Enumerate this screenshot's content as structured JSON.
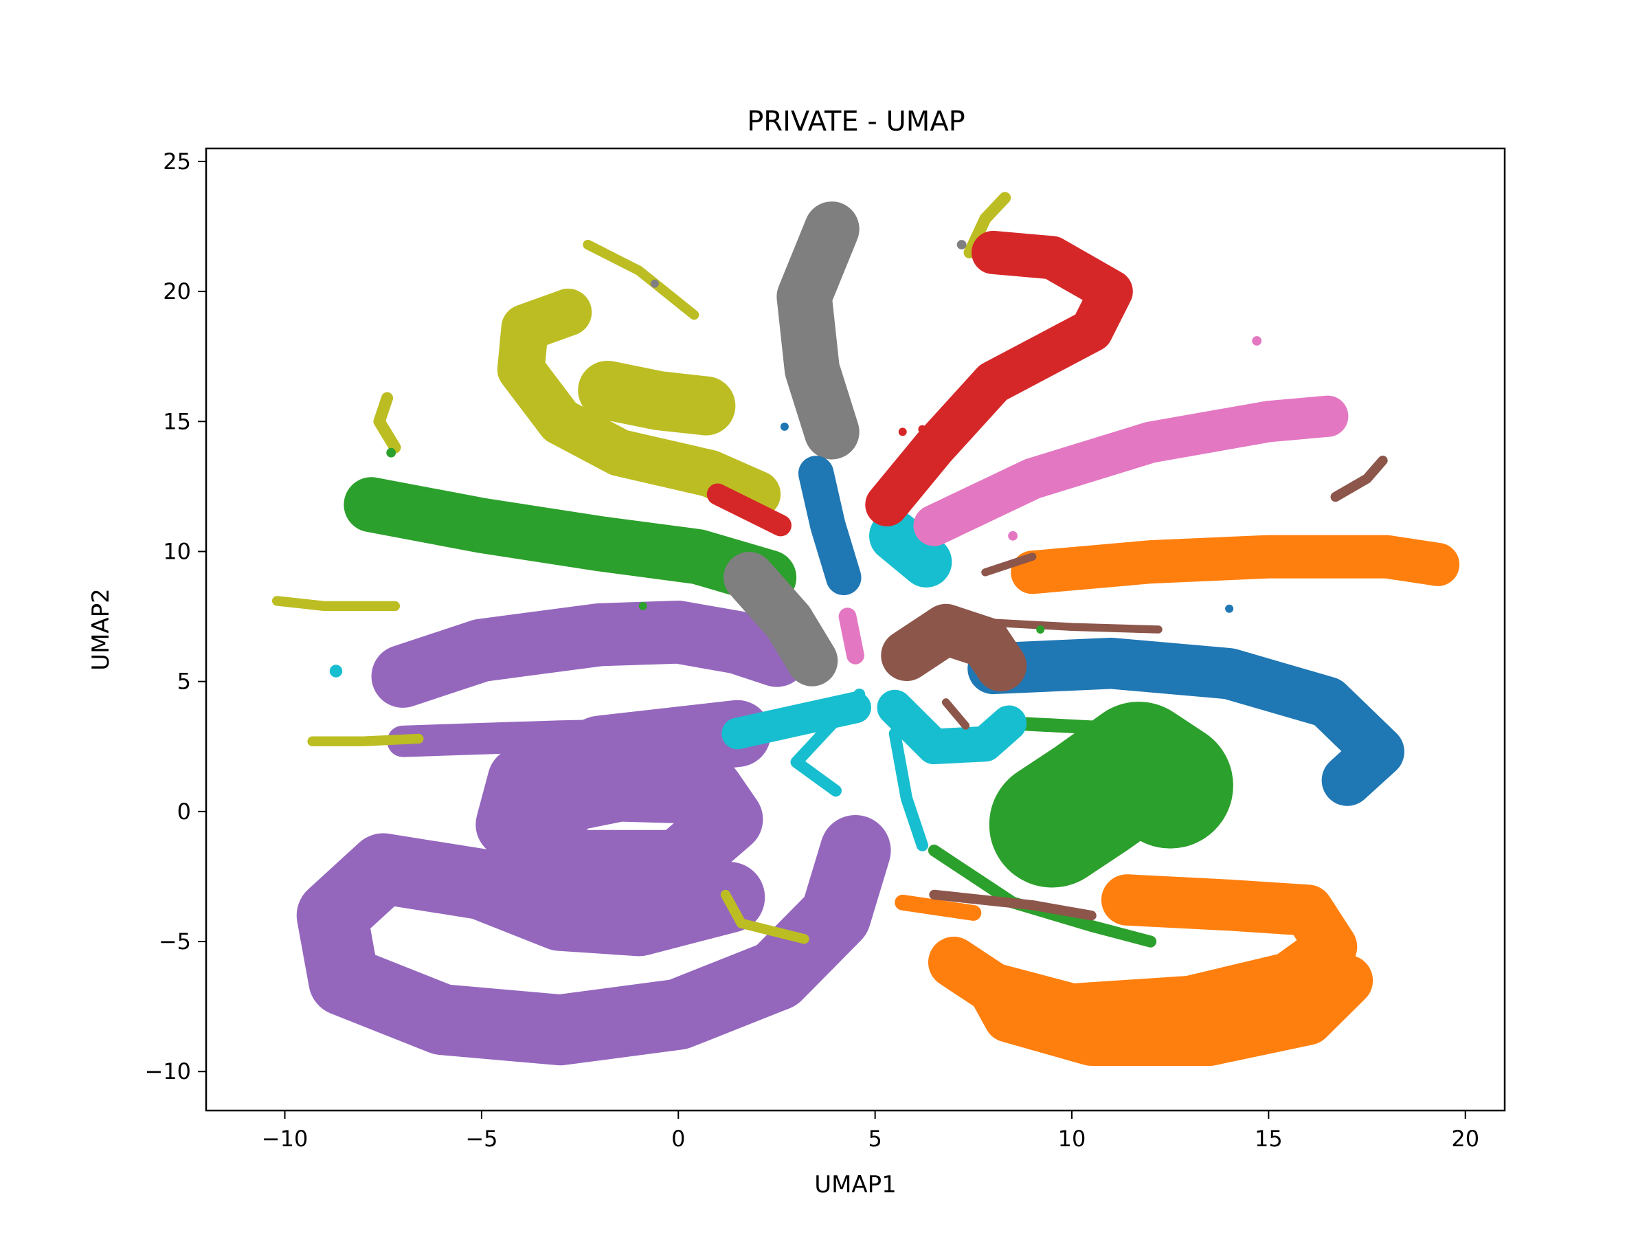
{
  "chart_data": {
    "type": "scatter",
    "title": "PRIVATE - UMAP",
    "xlabel": "UMAP1",
    "ylabel": "UMAP2",
    "xlim": [
      -12,
      21
    ],
    "ylim": [
      -11.5,
      25.5
    ],
    "xticks": [
      -10,
      -5,
      0,
      5,
      10,
      15,
      20
    ],
    "yticks": [
      -10,
      -5,
      0,
      5,
      10,
      15,
      20,
      25
    ],
    "xtick_labels": [
      "−10",
      "−5",
      "0",
      "5",
      "10",
      "15",
      "20"
    ],
    "ytick_labels": [
      "−10",
      "−5",
      "0",
      "5",
      "10",
      "15",
      "20",
      "25"
    ],
    "grid": false,
    "colors": [
      "#1f77b4",
      "#ff7f0e",
      "#2ca02c",
      "#d62728",
      "#9467bd",
      "#8c564b",
      "#e377c2",
      "#7f7f7f",
      "#bcbd22",
      "#17becf"
    ],
    "clusters": [
      {
        "color": "#9467bd",
        "width": 1.6,
        "points": [
          [
            -7,
            5.2
          ],
          [
            -5,
            6.2
          ],
          [
            -2,
            6.8
          ],
          [
            0,
            6.9
          ],
          [
            1.5,
            6.5
          ],
          [
            2.5,
            6
          ]
        ]
      },
      {
        "color": "#9467bd",
        "width": 0.8,
        "points": [
          [
            -7,
            2.7
          ],
          [
            -3,
            2.9
          ],
          [
            0,
            3
          ],
          [
            1.5,
            3
          ]
        ]
      },
      {
        "color": "#9467bd",
        "width": 1.7,
        "points": [
          [
            1.5,
            3
          ],
          [
            -2,
            2.4
          ],
          [
            -4,
            1.2
          ],
          [
            -4.3,
            -0.5
          ],
          [
            -2.5,
            -2
          ],
          [
            0,
            -2
          ],
          [
            1.3,
            -0.3
          ],
          [
            0.8,
            0.8
          ],
          [
            -1.5,
            0.9
          ],
          [
            -2.8,
            0.5
          ]
        ]
      },
      {
        "color": "#9467bd",
        "width": 1.8,
        "points": [
          [
            4.5,
            -1.5
          ],
          [
            4,
            -4
          ],
          [
            2.5,
            -6.3
          ],
          [
            0,
            -7.8
          ],
          [
            -3,
            -8.4
          ],
          [
            -6,
            -8
          ],
          [
            -8.5,
            -6.5
          ],
          [
            -8.8,
            -4
          ],
          [
            -7.5,
            -2.2
          ],
          [
            -5,
            -2.8
          ],
          [
            -3,
            -4
          ],
          [
            -1,
            -4.2
          ],
          [
            1.3,
            -3.3
          ]
        ]
      },
      {
        "color": "#bcbd22",
        "width": 1.2,
        "points": [
          [
            -2.8,
            19.2
          ],
          [
            -3.9,
            18.6
          ],
          [
            -4,
            17
          ],
          [
            -3,
            15
          ],
          [
            -1.5,
            13.8
          ],
          [
            0.8,
            13
          ],
          [
            2,
            12.2
          ]
        ]
      },
      {
        "color": "#bcbd22",
        "width": 1.5,
        "points": [
          [
            -1.8,
            16.2
          ],
          [
            -0.5,
            15.8
          ],
          [
            0.7,
            15.6
          ]
        ]
      },
      {
        "color": "#bcbd22",
        "width": 0.25,
        "points": [
          [
            -2.3,
            21.8
          ],
          [
            -1,
            20.8
          ],
          [
            0.4,
            19.1
          ]
        ]
      },
      {
        "color": "#bcbd22",
        "width": 0.3,
        "points": [
          [
            -7.4,
            15.9
          ],
          [
            -7.6,
            15
          ],
          [
            -7.2,
            14
          ]
        ]
      },
      {
        "color": "#bcbd22",
        "width": 0.25,
        "points": [
          [
            -10.2,
            8.1
          ],
          [
            -9,
            7.9
          ],
          [
            -7.2,
            7.9
          ]
        ]
      },
      {
        "color": "#bcbd22",
        "width": 0.25,
        "points": [
          [
            -9.3,
            2.7
          ],
          [
            -8,
            2.7
          ],
          [
            -6.6,
            2.8
          ]
        ]
      },
      {
        "color": "#bcbd22",
        "width": 0.25,
        "points": [
          [
            1.2,
            -3.2
          ],
          [
            1.6,
            -4.3
          ],
          [
            3.2,
            -4.9
          ]
        ]
      },
      {
        "color": "#bcbd22",
        "width": 0.3,
        "points": [
          [
            7.4,
            21.5
          ],
          [
            7.8,
            22.8
          ],
          [
            8.3,
            23.6
          ]
        ]
      },
      {
        "color": "#2ca02c",
        "width": 1.4,
        "points": [
          [
            -7.8,
            11.8
          ],
          [
            -5,
            11
          ],
          [
            -2,
            10.3
          ],
          [
            0.5,
            9.8
          ],
          [
            2.3,
            9
          ]
        ]
      },
      {
        "color": "#2ca02c",
        "width": 3.2,
        "points": [
          [
            9.5,
            -0.5
          ],
          [
            10.5,
            0.5
          ],
          [
            11.7,
            1.8
          ],
          [
            12.5,
            1
          ]
        ]
      },
      {
        "color": "#2ca02c",
        "width": 0.35,
        "points": [
          [
            8.4,
            3.4
          ],
          [
            11,
            3.2
          ],
          [
            13.2,
            2.2
          ]
        ]
      },
      {
        "color": "#2ca02c",
        "width": 0.3,
        "points": [
          [
            6.5,
            -1.5
          ],
          [
            8.5,
            -3.5
          ],
          [
            10.5,
            -4.4
          ],
          [
            12,
            -5
          ]
        ]
      },
      {
        "color": "#7f7f7f",
        "width": 1.4,
        "points": [
          [
            3.9,
            22.4
          ],
          [
            3.2,
            19.8
          ],
          [
            3.4,
            17
          ],
          [
            3.9,
            14.6
          ]
        ]
      },
      {
        "color": "#7f7f7f",
        "width": 1.3,
        "points": [
          [
            1.8,
            9
          ],
          [
            2.8,
            7.3
          ],
          [
            3.4,
            5.8
          ]
        ]
      },
      {
        "color": "#1f77b4",
        "width": 0.9,
        "points": [
          [
            3.5,
            13
          ],
          [
            3.8,
            11
          ],
          [
            4.2,
            9
          ]
        ]
      },
      {
        "color": "#1f77b4",
        "width": 1.3,
        "points": [
          [
            8,
            5.5
          ],
          [
            11,
            5.7
          ],
          [
            14,
            5.3
          ],
          [
            16.5,
            4.2
          ],
          [
            17.8,
            2.3
          ],
          [
            17,
            1.2
          ]
        ]
      },
      {
        "color": "#17becf",
        "width": 1.3,
        "points": [
          [
            5.5,
            10.6
          ],
          [
            6.3,
            9.6
          ]
        ]
      },
      {
        "color": "#17becf",
        "width": 0.8,
        "points": [
          [
            1.5,
            3
          ],
          [
            3,
            3.5
          ],
          [
            4.5,
            4
          ]
        ]
      },
      {
        "color": "#17becf",
        "width": 0.3,
        "points": [
          [
            4.6,
            4.5
          ],
          [
            3,
            1.9
          ],
          [
            4,
            0.8
          ]
        ]
      },
      {
        "color": "#17becf",
        "width": 0.9,
        "points": [
          [
            5.5,
            4
          ],
          [
            6.5,
            2.5
          ],
          [
            7.8,
            2.6
          ],
          [
            8.4,
            3.4
          ]
        ]
      },
      {
        "color": "#17becf",
        "width": 0.3,
        "points": [
          [
            5.5,
            3
          ],
          [
            5.8,
            0.5
          ],
          [
            6.2,
            -1.3
          ]
        ]
      },
      {
        "color": "#d62728",
        "width": 1.1,
        "points": [
          [
            5.3,
            11.8
          ],
          [
            6.5,
            14
          ],
          [
            8,
            16.5
          ],
          [
            10.5,
            18.5
          ],
          [
            11,
            20
          ],
          [
            9.5,
            21.3
          ],
          [
            8,
            21.5
          ]
        ]
      },
      {
        "color": "#d62728",
        "width": 0.55,
        "points": [
          [
            1,
            12.2
          ],
          [
            2.6,
            11
          ]
        ]
      },
      {
        "color": "#e377c2",
        "width": 1.05,
        "points": [
          [
            6.5,
            11
          ],
          [
            9,
            12.8
          ],
          [
            12,
            14.2
          ],
          [
            15,
            15
          ],
          [
            16.5,
            15.2
          ]
        ]
      },
      {
        "color": "#e377c2",
        "width": 0.45,
        "points": [
          [
            4.3,
            7.5
          ],
          [
            4.5,
            6
          ]
        ]
      },
      {
        "color": "#ff7f0e",
        "width": 1.1,
        "points": [
          [
            9,
            9.2
          ],
          [
            12,
            9.6
          ],
          [
            15,
            9.8
          ],
          [
            18,
            9.8
          ],
          [
            19.3,
            9.5
          ]
        ]
      },
      {
        "color": "#ff7f0e",
        "width": 1.3,
        "points": [
          [
            11.4,
            -3.4
          ],
          [
            14,
            -3.6
          ],
          [
            16,
            -3.8
          ],
          [
            16.6,
            -5.2
          ],
          [
            15.5,
            -6.4
          ],
          [
            13,
            -7.3
          ],
          [
            10,
            -7.6
          ],
          [
            8,
            -6.8
          ],
          [
            7,
            -5.8
          ]
        ]
      },
      {
        "color": "#ff7f0e",
        "width": 1.3,
        "points": [
          [
            8,
            -6.8
          ],
          [
            8.4,
            -7.9
          ],
          [
            10.5,
            -8.8
          ],
          [
            13.5,
            -8.8
          ],
          [
            16,
            -8
          ],
          [
            17,
            -6.5
          ]
        ]
      },
      {
        "color": "#ff7f0e",
        "width": 0.4,
        "points": [
          [
            5.7,
            -3.5
          ],
          [
            7.5,
            -3.9
          ]
        ]
      },
      {
        "color": "#8c564b",
        "width": 1.3,
        "points": [
          [
            5.8,
            6
          ],
          [
            6.8,
            7
          ],
          [
            7.8,
            6.5
          ],
          [
            8.2,
            5.6
          ]
        ]
      },
      {
        "color": "#8c564b",
        "width": 0.2,
        "points": [
          [
            7.5,
            7.3
          ],
          [
            10,
            7.1
          ],
          [
            12.2,
            7
          ]
        ]
      },
      {
        "color": "#8c564b",
        "width": 0.2,
        "points": [
          [
            7.8,
            9.2
          ],
          [
            9,
            9.8
          ]
        ]
      },
      {
        "color": "#8c564b",
        "width": 0.2,
        "points": [
          [
            6.8,
            4.2
          ],
          [
            7.3,
            3.3
          ]
        ]
      },
      {
        "color": "#8c564b",
        "width": 0.25,
        "points": [
          [
            6.5,
            -3.2
          ],
          [
            9,
            -3.6
          ],
          [
            10.5,
            -4
          ]
        ]
      },
      {
        "color": "#8c564b",
        "width": 0.25,
        "points": [
          [
            16.7,
            12.1
          ],
          [
            17.5,
            12.8
          ],
          [
            17.9,
            13.5
          ]
        ]
      }
    ],
    "specks": [
      {
        "color": "#17becf",
        "x": -8.7,
        "y": 5.4,
        "r": 0.16
      },
      {
        "color": "#e377c2",
        "x": 14.7,
        "y": 18.1,
        "r": 0.12
      },
      {
        "color": "#2ca02c",
        "x": -7.3,
        "y": 13.8,
        "r": 0.12
      },
      {
        "color": "#2ca02c",
        "x": -0.9,
        "y": 7.9,
        "r": 0.1
      },
      {
        "color": "#7f7f7f",
        "x": 7.2,
        "y": 21.8,
        "r": 0.12
      },
      {
        "color": "#7f7f7f",
        "x": -0.6,
        "y": 20.3,
        "r": 0.1
      },
      {
        "color": "#d62728",
        "x": 5.7,
        "y": 14.6,
        "r": 0.1
      },
      {
        "color": "#d62728",
        "x": 6.2,
        "y": 14.7,
        "r": 0.1
      },
      {
        "color": "#e377c2",
        "x": 8.5,
        "y": 10.6,
        "r": 0.12
      },
      {
        "color": "#1f77b4",
        "x": 14,
        "y": 7.8,
        "r": 0.1
      },
      {
        "color": "#2ca02c",
        "x": 9.2,
        "y": 7,
        "r": 0.1
      },
      {
        "color": "#1f77b4",
        "x": 2.7,
        "y": 14.8,
        "r": 0.1
      }
    ]
  }
}
